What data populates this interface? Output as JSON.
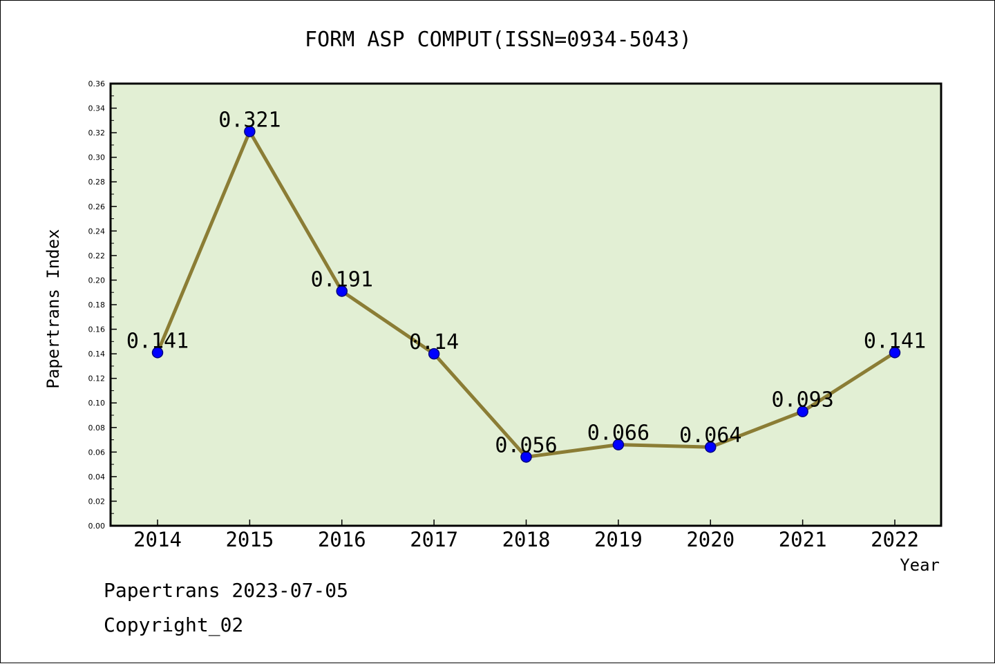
{
  "chart_data": {
    "type": "line",
    "title": "FORM ASP COMPUT(ISSN=0934-5043)",
    "xlabel": "Year",
    "ylabel": "Papertrans Index",
    "categories": [
      "2014",
      "2015",
      "2016",
      "2017",
      "2018",
      "2019",
      "2020",
      "2021",
      "2022"
    ],
    "values": [
      0.141,
      0.321,
      0.191,
      0.14,
      0.056,
      0.066,
      0.064,
      0.093,
      0.141
    ],
    "data_labels": [
      "0.141",
      "0.321",
      "0.191",
      "0.14",
      "0.056",
      "0.066",
      "0.064",
      "0.093",
      "0.141"
    ],
    "ylim": [
      0,
      0.36
    ],
    "yticks": [
      "0.00",
      "0.02",
      "0.04",
      "0.06",
      "0.08",
      "0.10",
      "0.12",
      "0.14",
      "0.16",
      "0.18",
      "0.20",
      "0.22",
      "0.24",
      "0.26",
      "0.28",
      "0.30",
      "0.32",
      "0.34",
      "0.36"
    ],
    "grid": false,
    "colors": {
      "plot_background": "#e2efd4",
      "line": "#8b7d35",
      "marker": "#0000ff",
      "marker_edge": "#000080"
    }
  },
  "footer": {
    "line1": "Papertrans 2023-07-05",
    "line2": "Copyright_02"
  }
}
